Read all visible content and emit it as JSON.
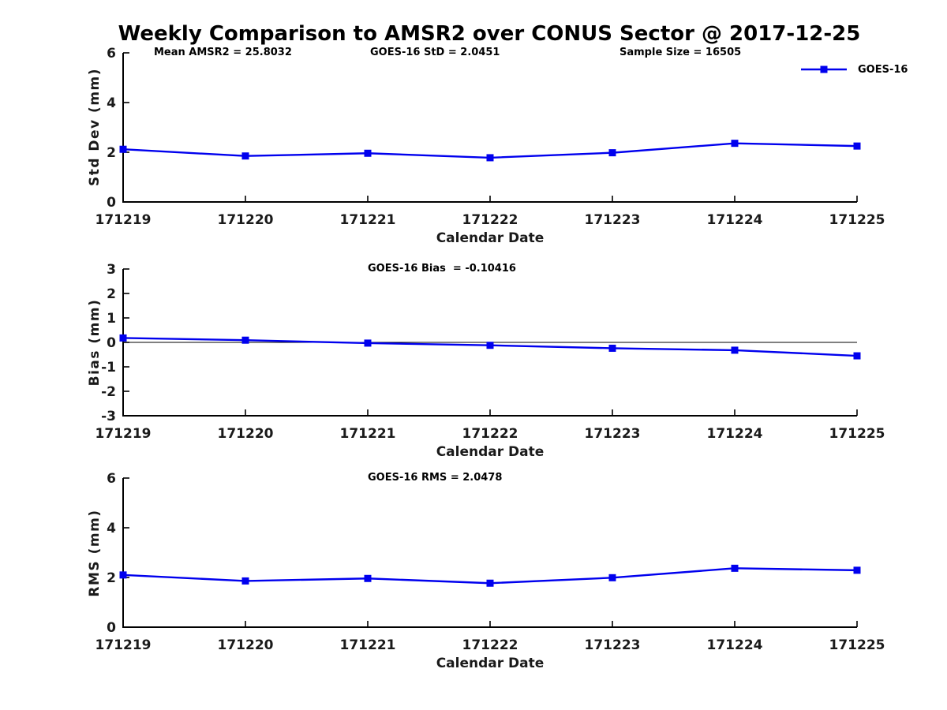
{
  "title": "Weekly Comparison to AMSR2 over CONUS Sector @ 2017-12-25",
  "legend": {
    "label": "GOES-16",
    "position": "top-right"
  },
  "colors": {
    "line": "#0000ee",
    "axis": "#000000",
    "tick_text": "#1a1a1a",
    "background": "#ffffff"
  },
  "chart_data": [
    {
      "type": "line",
      "name": "std-dev",
      "ylabel": "Std Dev (mm)",
      "xlabel": "Calendar Date",
      "categories": [
        "171219",
        "171220",
        "171221",
        "171222",
        "171223",
        "171224",
        "171225"
      ],
      "series": [
        {
          "name": "GOES-16",
          "values": [
            2.12,
            1.85,
            1.96,
            1.78,
            1.98,
            2.36,
            2.25
          ]
        }
      ],
      "ylim": [
        0,
        6
      ],
      "yticks": [
        0,
        2,
        4,
        6
      ],
      "grid": false,
      "zero_line": false,
      "annotations": [
        "Mean AMSR2 = 25.8032",
        "GOES-16 StD = 2.0451",
        "Sample Size = 16505"
      ]
    },
    {
      "type": "line",
      "name": "bias",
      "ylabel": "Bias (mm)",
      "xlabel": "Calendar Date",
      "categories": [
        "171219",
        "171220",
        "171221",
        "171222",
        "171223",
        "171224",
        "171225"
      ],
      "series": [
        {
          "name": "GOES-16",
          "values": [
            0.18,
            0.09,
            -0.03,
            -0.12,
            -0.24,
            -0.32,
            -0.55
          ]
        }
      ],
      "ylim": [
        -3,
        3
      ],
      "yticks": [
        -3,
        -2,
        -1,
        0,
        1,
        2,
        3
      ],
      "grid": false,
      "zero_line": true,
      "annotations": [
        "GOES-16 Bias  = -0.10416"
      ]
    },
    {
      "type": "line",
      "name": "rms",
      "ylabel": "RMS (mm)",
      "xlabel": "Calendar Date",
      "categories": [
        "171219",
        "171220",
        "171221",
        "171222",
        "171223",
        "171224",
        "171225"
      ],
      "series": [
        {
          "name": "GOES-16",
          "values": [
            2.1,
            1.86,
            1.96,
            1.77,
            1.99,
            2.37,
            2.29
          ]
        }
      ],
      "ylim": [
        0,
        6
      ],
      "yticks": [
        0,
        2,
        4,
        6
      ],
      "grid": false,
      "zero_line": false,
      "annotations": [
        "GOES-16 RMS = 2.0478"
      ]
    }
  ]
}
